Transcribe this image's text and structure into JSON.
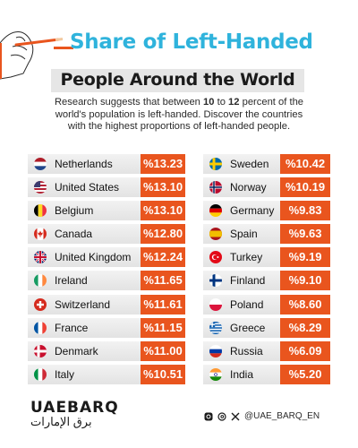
{
  "header": {
    "title_line1": "Share of Left-Handed",
    "title_line2": "People Around the World",
    "description_pre": "Research suggests that between ",
    "description_num1": "10",
    "description_mid": " to ",
    "description_num2": "12",
    "description_post": " percent of the world's population is left-handed. Discover the countries with the highest proportions of left-handed people."
  },
  "colors": {
    "accent": "#e9551e",
    "title_blue": "#2fb3dc",
    "row_bg": "#ececec"
  },
  "chart_data": {
    "type": "table",
    "title": "Share of Left-Handed People Around the World",
    "columns": [
      [
        {
          "country": "Netherlands",
          "value": 13.23,
          "label": "%13.23",
          "flag": "nl"
        },
        {
          "country": "United States",
          "value": 13.1,
          "label": "%13.10",
          "flag": "us"
        },
        {
          "country": "Belgium",
          "value": 13.1,
          "label": "%13.10",
          "flag": "be"
        },
        {
          "country": "Canada",
          "value": 12.8,
          "label": "%12.80",
          "flag": "ca"
        },
        {
          "country": "United Kingdom",
          "value": 12.24,
          "label": "%12.24",
          "flag": "gb"
        },
        {
          "country": "Ireland",
          "value": 11.65,
          "label": "%11.65",
          "flag": "ie"
        },
        {
          "country": "Switzerland",
          "value": 11.61,
          "label": "%11.61",
          "flag": "ch"
        },
        {
          "country": "France",
          "value": 11.15,
          "label": "%11.15",
          "flag": "fr"
        },
        {
          "country": "Denmark",
          "value": 11.0,
          "label": "%11.00",
          "flag": "dk"
        },
        {
          "country": "Italy",
          "value": 10.51,
          "label": "%10.51",
          "flag": "it"
        }
      ],
      [
        {
          "country": "Sweden",
          "value": 10.42,
          "label": "%10.42",
          "flag": "se"
        },
        {
          "country": "Norway",
          "value": 10.19,
          "label": "%10.19",
          "flag": "no"
        },
        {
          "country": "Germany",
          "value": 9.83,
          "label": "%9.83",
          "flag": "de"
        },
        {
          "country": "Spain",
          "value": 9.63,
          "label": "%9.63",
          "flag": "es"
        },
        {
          "country": "Turkey",
          "value": 9.19,
          "label": "%9.19",
          "flag": "tr"
        },
        {
          "country": "Finland",
          "value": 9.1,
          "label": "%9.10",
          "flag": "fi"
        },
        {
          "country": "Poland",
          "value": 8.6,
          "label": "%8.60",
          "flag": "pl"
        },
        {
          "country": "Greece",
          "value": 8.29,
          "label": "%8.29",
          "flag": "gr"
        },
        {
          "country": "Russia",
          "value": 6.09,
          "label": "%6.09",
          "flag": "ru"
        },
        {
          "country": "India",
          "value": 5.2,
          "label": "%5.20",
          "flag": "in"
        }
      ]
    ]
  },
  "footer": {
    "logo_en": "UAEBARQ",
    "logo_ar": "برق الإمارات",
    "handle": "@UAE_BARQ_EN",
    "icons": [
      "instagram-icon",
      "threads-icon",
      "x-icon"
    ]
  }
}
